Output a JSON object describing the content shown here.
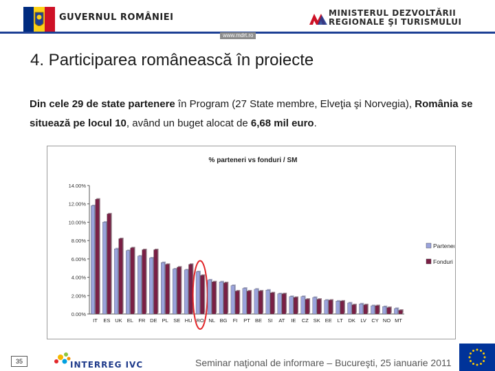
{
  "header": {
    "gov_label": "GUVERNUL ROMÂNIEI",
    "url": "www.mdrt.ro",
    "ministry_line1": "MINISTERUL DEZVOLTĂRII",
    "ministry_line2": "REGIONALE ŞI TURISMULUI"
  },
  "slide": {
    "title": "4. Participarea românească în proiecte",
    "body_part1": "Din cele 29 de state partenere",
    "body_part2": " în Program (27 State membre, Elveţia şi Norvegia), ",
    "body_part3": "România se situează pe locul 10",
    "body_part4": ", având un buget alocat de ",
    "body_part5": "6,68 mil euro",
    "body_part6": "."
  },
  "footer": {
    "page_number": "35",
    "logo_text": "INTERREG IVC",
    "caption": "Seminar naţional de informare – Bucureşti, 25 ianuarie 2011"
  },
  "colors": {
    "header_line": "#1c3f94",
    "parteneri": "#9aa3dc",
    "fonduri": "#7a1f45",
    "highlight": "#e2262a",
    "eu_blue": "#003399",
    "eu_star": "#ffcc00"
  },
  "chart_data": {
    "type": "bar",
    "title": "% parteneri vs fonduri / SM",
    "categories": [
      "IT",
      "ES",
      "UK",
      "EL",
      "FR",
      "DE",
      "PL",
      "SE",
      "HU",
      "RO",
      "NL",
      "BG",
      "FI",
      "PT",
      "BE",
      "SI",
      "AT",
      "IE",
      "CZ",
      "SK",
      "EE",
      "LT",
      "DK",
      "LV",
      "CY",
      "NO",
      "MT"
    ],
    "series": [
      {
        "name": "Parteneri",
        "values": [
          11.8,
          10.0,
          7.1,
          6.9,
          6.3,
          6.1,
          5.6,
          4.9,
          4.8,
          4.6,
          3.7,
          3.5,
          3.1,
          2.8,
          2.7,
          2.6,
          2.2,
          1.9,
          1.9,
          1.8,
          1.5,
          1.4,
          1.2,
          1.1,
          0.9,
          0.8,
          0.6
        ]
      },
      {
        "name": "Fonduri",
        "values": [
          12.5,
          10.9,
          8.2,
          7.2,
          7.0,
          7.0,
          5.4,
          5.1,
          5.4,
          4.2,
          3.5,
          3.4,
          2.5,
          2.5,
          2.5,
          2.3,
          2.2,
          1.8,
          1.6,
          1.6,
          1.5,
          1.4,
          1.0,
          1.0,
          0.9,
          0.7,
          0.4
        ]
      }
    ],
    "ylim": [
      0,
      14
    ],
    "yticks": [
      "0.00%",
      "2.00%",
      "4.00%",
      "6.00%",
      "8.00%",
      "10.00%",
      "12.00%",
      "14.00%"
    ],
    "highlight_category": "RO",
    "legend": "right",
    "grid": false
  }
}
